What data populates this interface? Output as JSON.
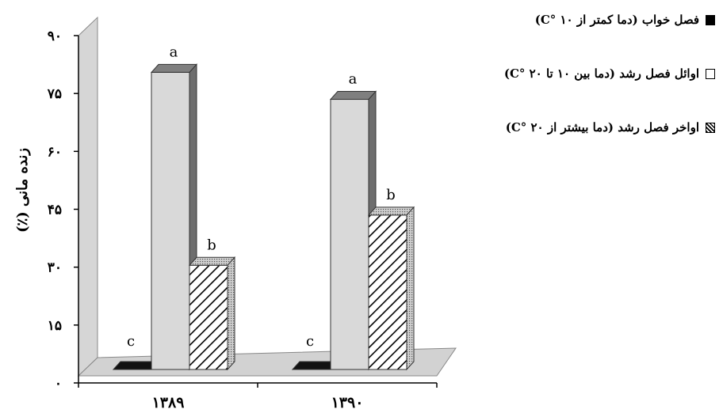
{
  "chart_data": {
    "type": "bar",
    "categories": [
      "۱۳۸۹",
      "۱۳۹۰"
    ],
    "series": [
      {
        "name": "فصل خواب (دما کمتر از C° ۱۰)",
        "values": [
          0,
          0
        ],
        "letters": [
          "c",
          "c"
        ],
        "color": "#000000",
        "pattern": "solid"
      },
      {
        "name": "اوائل فصل رشد (دما بین ۱۰ تا C° ۲۰)",
        "values": [
          77,
          70
        ],
        "letters": [
          "a",
          "a"
        ],
        "color": "#d9d9d9",
        "pattern": "plain"
      },
      {
        "name": "اواخر فصل رشد (دما بیشتر از C° ۲۰)",
        "values": [
          27,
          40
        ],
        "letters": [
          "b",
          "b"
        ],
        "color": "#ffffff",
        "pattern": "hatch"
      }
    ],
    "ylabel": "زنده مانی (٪)",
    "xlabel": "",
    "ylim": [
      0,
      90
    ],
    "yticks": [
      0,
      15,
      30,
      45,
      60,
      75,
      90
    ],
    "ytick_labels": [
      "۰",
      "۱۵",
      "۳۰",
      "۴۵",
      "۶۰",
      "۷۵",
      "۹۰"
    ],
    "legend_position": "top-right",
    "grid": false,
    "style": "3d"
  }
}
